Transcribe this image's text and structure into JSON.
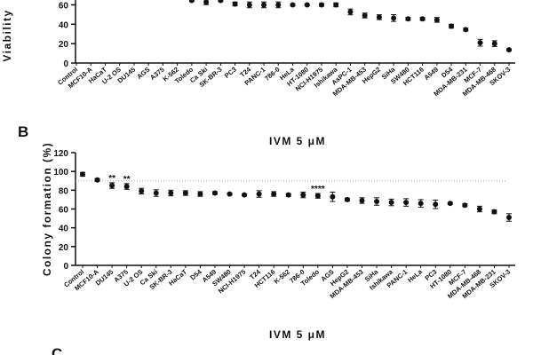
{
  "panels": [
    "B",
    "C"
  ],
  "chart_data": [
    {
      "type": "scatter",
      "y_label": "Viability",
      "x_label": "IVM 5 μM",
      "categories": [
        "Control",
        "MCF10-A",
        "HaCaT",
        "U-2 OS",
        "DU145",
        "AGS",
        "A375",
        "K-562",
        "Toledo",
        "Ca Ski",
        "SK-BR-3",
        "PC3",
        "T24",
        "PANC-1",
        "786-0",
        "HeLa",
        "HT-1080",
        "NCI-H1975",
        "Ishikawa",
        "AsPC-1",
        "MDA-MB-453",
        "HepG2",
        "SiHa",
        "SW480",
        "HCT116",
        "A549",
        "D54",
        "MDA-MB-231",
        "MCF-7",
        "MDA-MB-468",
        "SKOV-3"
      ],
      "values": [
        null,
        null,
        null,
        null,
        null,
        null,
        null,
        null,
        64.5,
        62.7,
        64.5,
        60.9,
        60,
        60,
        60,
        60,
        60,
        60,
        60,
        52.7,
        49,
        47.3,
        46.4,
        45.5,
        45.5,
        44.5,
        38,
        34.5,
        20.9,
        20,
        13.6
      ],
      "errors": [
        null,
        null,
        null,
        null,
        null,
        null,
        null,
        null,
        1,
        2.5,
        1,
        2,
        3,
        3,
        3,
        1,
        1,
        1.5,
        2,
        3,
        2.5,
        2.5,
        3.5,
        1.5,
        1.5,
        2.5,
        2,
        1.5,
        3.5,
        3,
        1
      ],
      "color": "#111111",
      "ylim": [
        0,
        65
      ],
      "yticks": [
        0,
        20,
        40,
        60
      ]
    },
    {
      "type": "scatter",
      "y_label": "Colony formation (%)",
      "x_label": "IVM 5 μM",
      "categories": [
        "Control",
        "MCF10-A",
        "DU145",
        "A375",
        "U-2 OS",
        "Ca Ski",
        "SK-BR-3",
        "HaCaT",
        "D54",
        "A549",
        "SW480",
        "NCI-H1975",
        "T24",
        "HCT116",
        "K-562",
        "786-0",
        "Toledo",
        "AGS",
        "HepG2",
        "MDA-MB-453",
        "SiHa",
        "Ishikawa",
        "PANC-1",
        "HeLa",
        "PC3",
        "HT-1080",
        "MCF-7",
        "MDA-MB-468",
        "MDA-MB-231",
        "SKOV-3"
      ],
      "values": [
        97,
        91,
        85,
        84,
        79,
        77,
        77,
        77,
        76,
        77,
        76,
        75,
        76,
        76,
        75,
        75,
        74,
        73,
        70,
        69,
        68,
        67,
        67,
        66,
        65,
        66,
        64,
        60,
        57,
        51
      ],
      "errors": [
        2,
        1.5,
        3,
        3,
        3,
        3.5,
        3,
        2.5,
        2.5,
        1.5,
        1,
        1,
        3.5,
        2.5,
        1.5,
        3,
        2.5,
        5,
        1.5,
        3,
        4,
        3.5,
        4,
        4,
        4.5,
        1,
        1.5,
        3,
        2,
        4
      ],
      "color": "#111111",
      "reference_line": 90,
      "annotations": [
        {
          "text": "**",
          "category": "DU145"
        },
        {
          "text": "**",
          "category": "A375"
        },
        {
          "text": "****",
          "category": "Toledo"
        }
      ],
      "ylim": [
        0,
        120
      ],
      "yticks": [
        0,
        20,
        40,
        60,
        80,
        100,
        120
      ]
    }
  ]
}
